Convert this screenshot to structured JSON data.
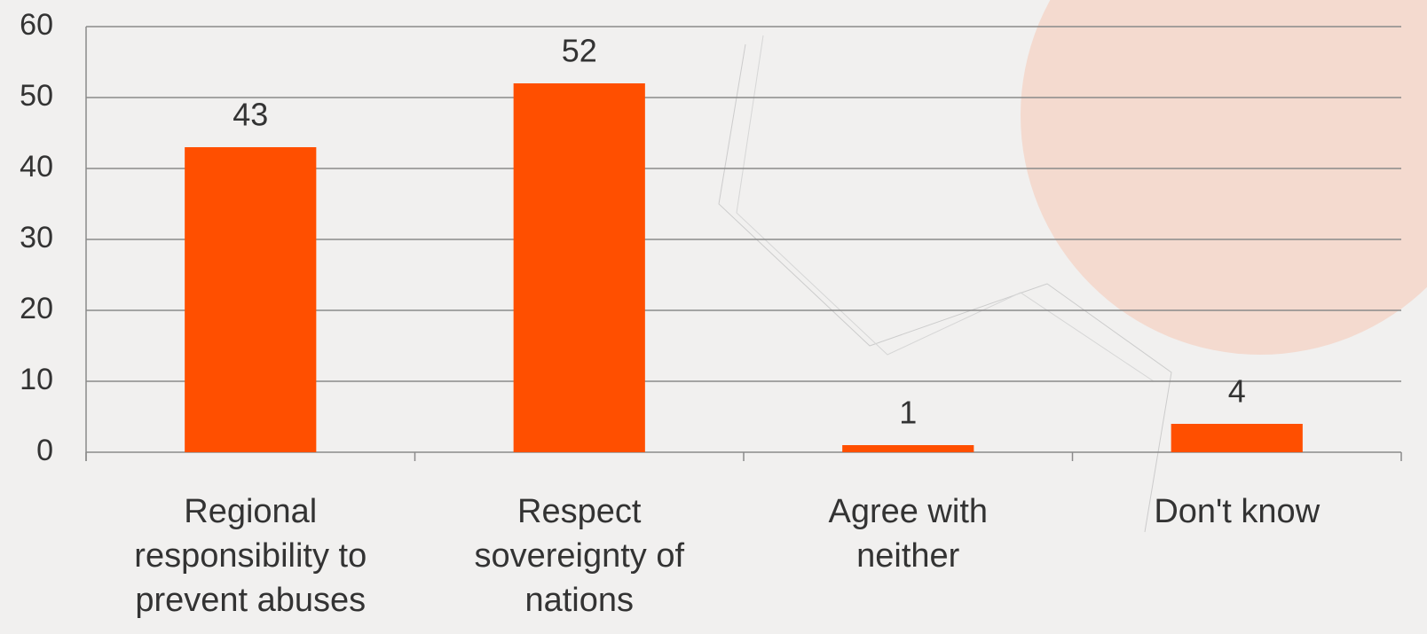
{
  "chart_data": {
    "type": "bar",
    "categories": [
      "Regional responsibility to prevent abuses",
      "Respect sovereignty of nations",
      "Agree with neither",
      "Don't know"
    ],
    "values": [
      43,
      52,
      1,
      4
    ],
    "color": "#ff4f00",
    "ylim": [
      0,
      60
    ],
    "yticks": [
      0,
      10,
      20,
      30,
      40,
      50,
      60
    ],
    "grid": true
  }
}
